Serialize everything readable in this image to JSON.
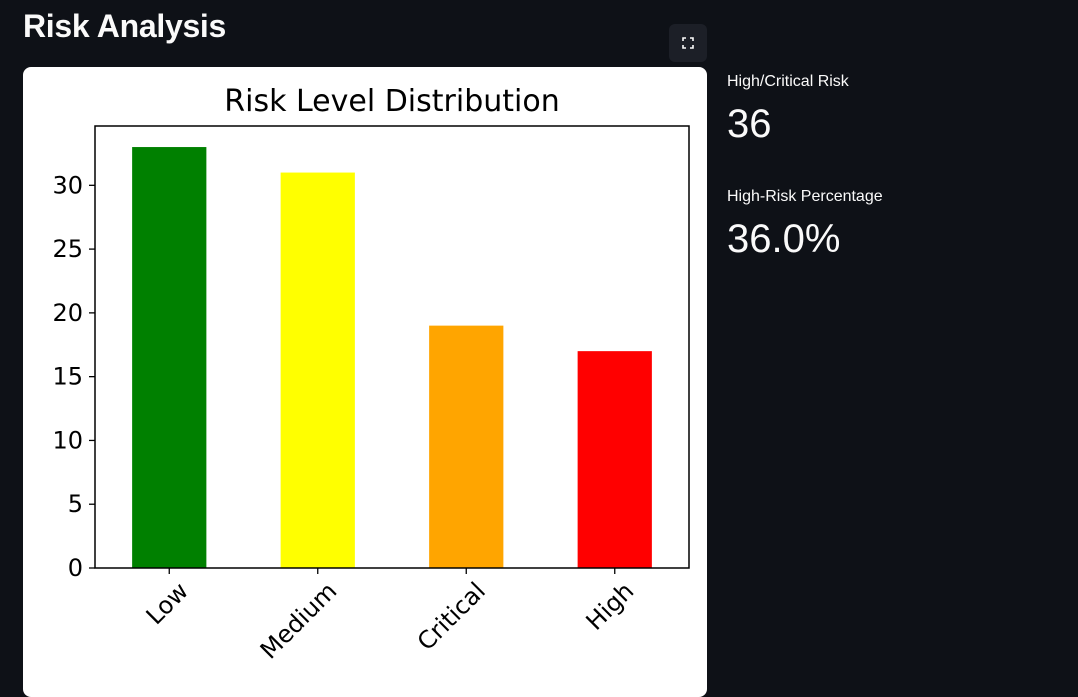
{
  "page": {
    "title": "Risk Analysis"
  },
  "icons": {
    "fullscreen": "fullscreen-expand-icon"
  },
  "metrics": [
    {
      "label": "High/Critical Risk",
      "value": "36"
    },
    {
      "label": "High-Risk Percentage",
      "value": "36.0%"
    }
  ],
  "chart_data": {
    "type": "bar",
    "title": "Risk Level Distribution",
    "xlabel": "",
    "ylabel": "",
    "categories": [
      "Low",
      "Medium",
      "Critical",
      "High"
    ],
    "values": [
      33,
      31,
      19,
      17
    ],
    "colors": [
      "#008000",
      "#ffff00",
      "#ffa500",
      "#ff0000"
    ],
    "ylim": [
      0,
      34.65
    ],
    "yticks": [
      0,
      5,
      10,
      15,
      20,
      25,
      30
    ],
    "grid": false,
    "legend": "none"
  }
}
